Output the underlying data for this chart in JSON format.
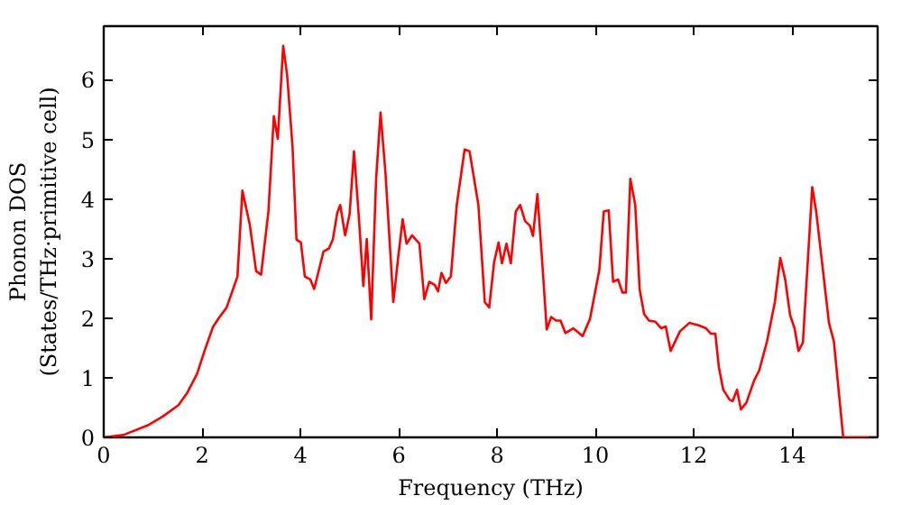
{
  "chart_data": {
    "type": "line",
    "xlabel": "Frequency (THz)",
    "ylabel": "Phonon DOS\n(States/THz·primitive cell)",
    "xlim": [
      0,
      15.74
    ],
    "ylim": [
      0,
      6.9
    ],
    "xticks": [
      0,
      2,
      4,
      6,
      8,
      10,
      12,
      14
    ],
    "yticks": [
      0,
      1,
      2,
      3,
      4,
      5,
      6
    ],
    "grid": false,
    "marker": "none",
    "line_style": "solid",
    "series": [
      {
        "color": "#ff0000",
        "x": [
          0,
          0.4,
          0.89,
          1.2,
          1.52,
          1.7,
          1.9,
          2.05,
          2.22,
          2.34,
          2.5,
          2.72,
          2.82,
          2.97,
          3.1,
          3.2,
          3.35,
          3.46,
          3.54,
          3.65,
          3.73,
          3.84,
          3.92,
          4.01,
          4.09,
          4.2,
          4.28,
          4.47,
          4.58,
          4.66,
          4.75,
          4.81,
          4.91,
          5.0,
          5.09,
          5.19,
          5.28,
          5.35,
          5.44,
          5.54,
          5.63,
          5.73,
          5.89,
          5.99,
          6.08,
          6.16,
          6.27,
          6.42,
          6.52,
          6.62,
          6.73,
          6.8,
          6.87,
          6.96,
          7.06,
          7.18,
          7.34,
          7.44,
          7.62,
          7.75,
          7.84,
          7.94,
          8.03,
          8.1,
          8.19,
          8.28,
          8.38,
          8.47,
          8.57,
          8.67,
          8.73,
          8.82,
          8.92,
          9.01,
          9.1,
          9.2,
          9.29,
          9.39,
          9.55,
          9.74,
          9.89,
          10.08,
          10.17,
          10.27,
          10.36,
          10.46,
          10.55,
          10.62,
          10.71,
          10.81,
          10.9,
          10.99,
          11.09,
          11.22,
          11.34,
          11.43,
          11.53,
          11.72,
          11.91,
          12.1,
          12.25,
          12.35,
          12.44,
          12.51,
          12.6,
          12.73,
          12.79,
          12.88,
          12.96,
          13.07,
          13.23,
          13.33,
          13.49,
          13.65,
          13.76,
          13.86,
          13.96,
          14.05,
          14.13,
          14.22,
          14.41,
          14.49,
          14.62,
          14.75,
          14.85,
          15.04,
          15.7
        ],
        "values": [
          0,
          0.04,
          0.2,
          0.35,
          0.54,
          0.75,
          1.07,
          1.45,
          1.85,
          2.0,
          2.18,
          2.7,
          4.14,
          3.57,
          2.79,
          2.73,
          3.79,
          5.39,
          5.01,
          6.57,
          6.08,
          4.88,
          3.32,
          3.27,
          2.7,
          2.65,
          2.49,
          3.12,
          3.17,
          3.32,
          3.77,
          3.9,
          3.39,
          3.74,
          4.8,
          3.68,
          2.54,
          3.33,
          1.98,
          4.34,
          5.45,
          4.44,
          2.27,
          3.03,
          3.66,
          3.25,
          3.39,
          3.25,
          2.32,
          2.61,
          2.56,
          2.45,
          2.76,
          2.59,
          2.7,
          3.9,
          4.83,
          4.8,
          3.9,
          2.27,
          2.18,
          2.94,
          3.27,
          2.92,
          3.25,
          2.92,
          3.79,
          3.9,
          3.63,
          3.55,
          3.38,
          4.08,
          2.92,
          1.81,
          2.02,
          1.96,
          1.96,
          1.75,
          1.83,
          1.7,
          1.99,
          2.81,
          3.79,
          3.81,
          2.61,
          2.65,
          2.43,
          2.43,
          4.34,
          3.9,
          2.48,
          2.07,
          1.96,
          1.94,
          1.83,
          1.86,
          1.45,
          1.78,
          1.92,
          1.88,
          1.83,
          1.74,
          1.74,
          1.18,
          0.8,
          0.63,
          0.61,
          0.8,
          0.47,
          0.58,
          0.96,
          1.12,
          1.61,
          2.27,
          3.01,
          2.65,
          2.05,
          1.83,
          1.45,
          1.59,
          4.2,
          3.79,
          2.86,
          1.92,
          1.61,
          0,
          0
        ]
      }
    ]
  }
}
